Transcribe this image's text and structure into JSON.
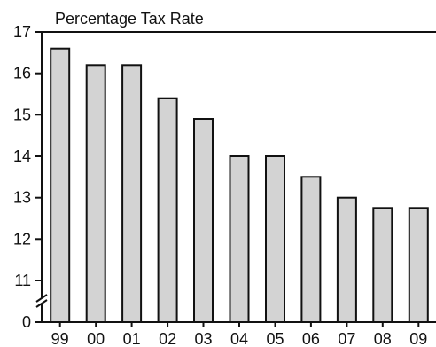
{
  "chart_data": {
    "type": "bar",
    "title": "",
    "ylabel": "Percentage Tax Rate",
    "xlabel": "",
    "categories": [
      "99",
      "00",
      "01",
      "02",
      "03",
      "04",
      "05",
      "06",
      "07",
      "08",
      "09"
    ],
    "values": [
      16.6,
      16.2,
      16.2,
      15.4,
      14.9,
      14.0,
      14.0,
      13.5,
      13.0,
      12.75,
      12.75
    ],
    "ylim": [
      10.5,
      17
    ],
    "y_ticks": [
      {
        "value": 0,
        "label": "0"
      },
      {
        "value": 11,
        "label": "11"
      },
      {
        "value": 12,
        "label": "12"
      },
      {
        "value": 13,
        "label": "13"
      },
      {
        "value": 14,
        "label": "14"
      },
      {
        "value": 15,
        "label": "15"
      },
      {
        "value": 16,
        "label": "16"
      },
      {
        "value": 17,
        "label": "17"
      }
    ],
    "axis_break": true,
    "grid": false,
    "bar_color": "#d3d3d3",
    "line_color": "#111111"
  }
}
